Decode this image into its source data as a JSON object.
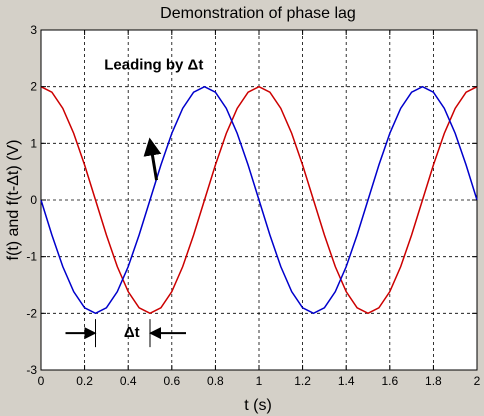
{
  "chart_data": {
    "type": "line",
    "title": "Demonstration of phase lag",
    "xlabel": "t (s)",
    "ylabel": "f(t) and f(t-Δt) (V)",
    "xlim": [
      0,
      2
    ],
    "ylim": [
      -3,
      3
    ],
    "x_ticks": [
      "0",
      "0.2",
      "0.4",
      "0.6",
      "0.8",
      "1",
      "1.2",
      "1.4",
      "1.6",
      "1.8",
      "2"
    ],
    "y_ticks": [
      "-3",
      "-2",
      "-1",
      "0",
      "1",
      "2",
      "3"
    ],
    "grid": true,
    "series": [
      {
        "color": "#cc0000",
        "x": [
          0,
          0.05,
          0.1,
          0.15,
          0.2,
          0.25,
          0.3,
          0.35,
          0.4,
          0.45,
          0.5,
          0.55,
          0.6,
          0.65,
          0.7,
          0.75,
          0.8,
          0.85,
          0.9,
          0.95,
          1.0,
          1.05,
          1.1,
          1.15,
          1.2,
          1.25,
          1.3,
          1.35,
          1.4,
          1.45,
          1.5,
          1.55,
          1.6,
          1.65,
          1.7,
          1.75,
          1.8,
          1.85,
          1.9,
          1.95,
          2.0
        ],
        "y": [
          2.0,
          1.902,
          1.618,
          1.176,
          0.618,
          0.0,
          -0.618,
          -1.176,
          -1.618,
          -1.902,
          -2.0,
          -1.902,
          -1.618,
          -1.176,
          -0.618,
          0.0,
          0.618,
          1.176,
          1.618,
          1.902,
          2.0,
          1.902,
          1.618,
          1.176,
          0.618,
          0.0,
          -0.618,
          -1.176,
          -1.618,
          -1.902,
          -2.0,
          -1.902,
          -1.618,
          -1.176,
          -0.618,
          0.0,
          0.618,
          1.176,
          1.618,
          1.902,
          2.0
        ]
      },
      {
        "color": "#0000cc",
        "x": [
          0,
          0.05,
          0.1,
          0.15,
          0.2,
          0.25,
          0.3,
          0.35,
          0.4,
          0.45,
          0.5,
          0.55,
          0.6,
          0.65,
          0.7,
          0.75,
          0.8,
          0.85,
          0.9,
          0.95,
          1.0,
          1.05,
          1.1,
          1.15,
          1.2,
          1.25,
          1.3,
          1.35,
          1.4,
          1.45,
          1.5,
          1.55,
          1.6,
          1.65,
          1.7,
          1.75,
          1.8,
          1.85,
          1.9,
          1.95,
          2.0
        ],
        "y": [
          0.0,
          -0.618,
          -1.176,
          -1.618,
          -1.902,
          -2.0,
          -1.902,
          -1.618,
          -1.176,
          -0.618,
          0.0,
          0.618,
          1.176,
          1.618,
          1.902,
          2.0,
          1.902,
          1.618,
          1.176,
          0.618,
          0.0,
          -0.618,
          -1.176,
          -1.618,
          -1.902,
          -2.0,
          -1.902,
          -1.618,
          -1.176,
          -0.618,
          0.0,
          0.618,
          1.176,
          1.618,
          1.902,
          2.0,
          1.902,
          1.618,
          1.176,
          0.618,
          0.0
        ]
      }
    ],
    "annotations": [
      {
        "text": "Leading by Δt",
        "x": 0.29,
        "y": 2.3,
        "arrow_from": [
          0.53,
          0.35
        ],
        "arrow_to": [
          0.5,
          1.05
        ]
      },
      {
        "text": "Δt",
        "x": 0.38,
        "y": -2.42,
        "span": [
          0.25,
          0.5
        ]
      }
    ]
  }
}
